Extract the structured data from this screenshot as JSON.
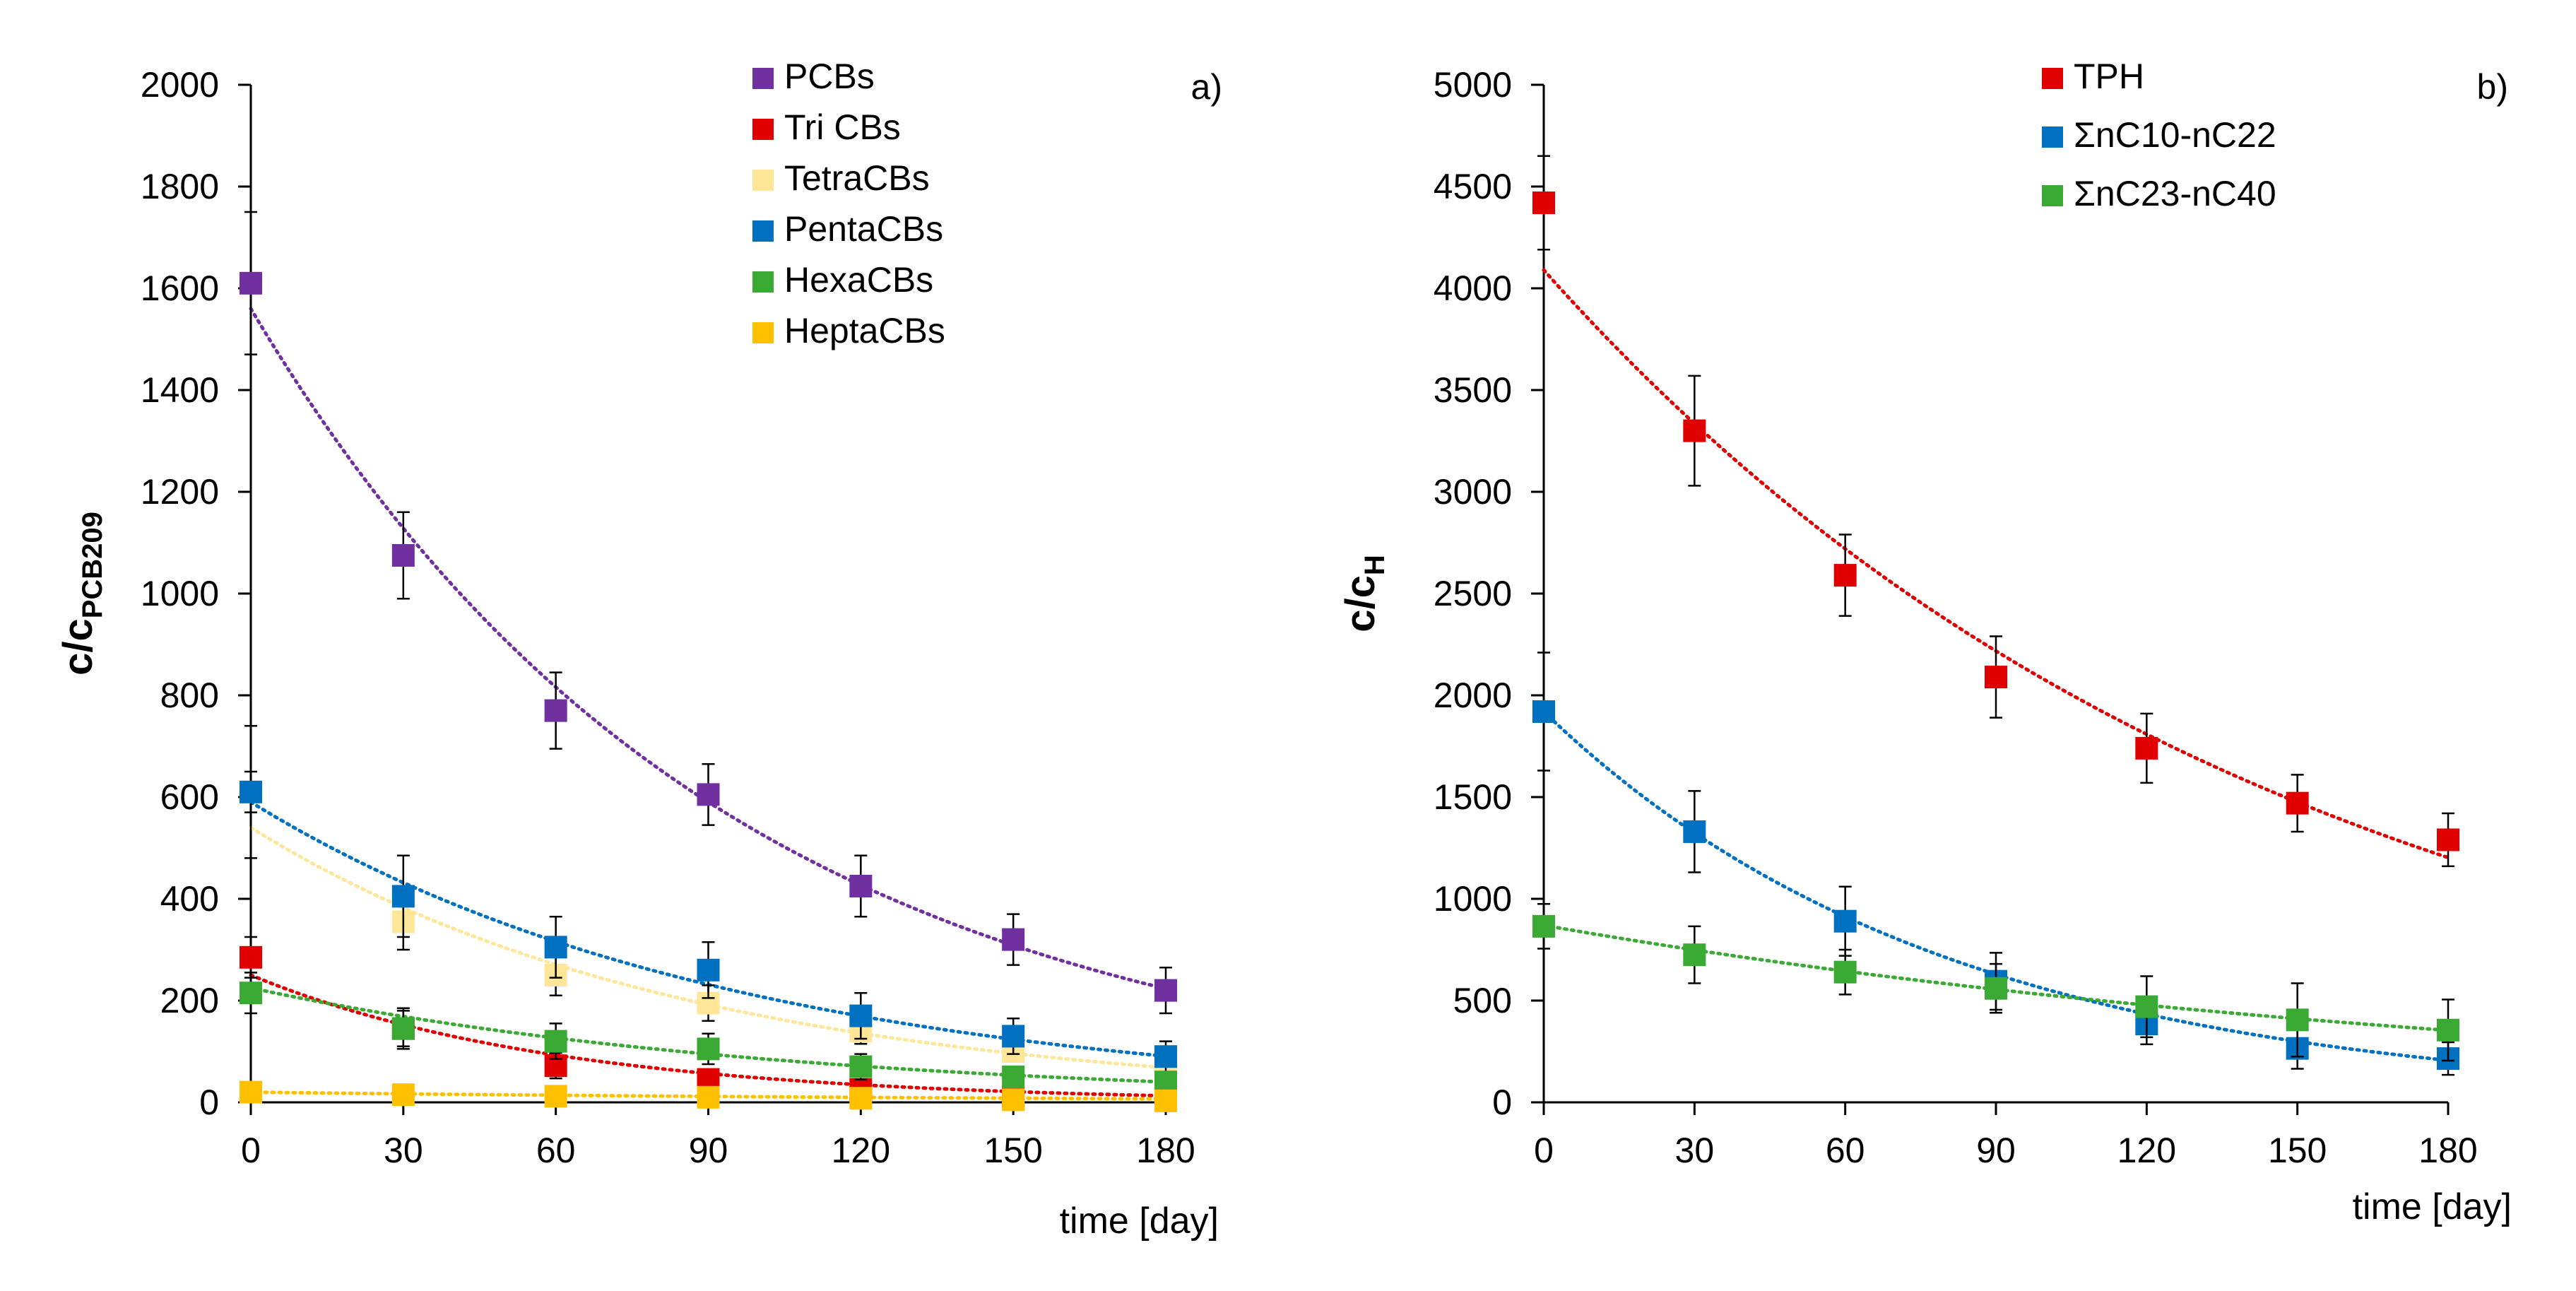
{
  "chart_data": [
    {
      "type": "scatter",
      "panel_label": "a)",
      "xlabel": "time [day]",
      "ylabel_main": "c/c",
      "ylabel_sub": "PCB209",
      "x": [
        0,
        30,
        60,
        90,
        120,
        150,
        180
      ],
      "xlim": [
        0,
        180
      ],
      "ylim": [
        0,
        2000
      ],
      "yticks": [
        "0",
        "200",
        "400",
        "600",
        "800",
        "1000",
        "1200",
        "1400",
        "1600",
        "1800",
        "2000"
      ],
      "xticks": [
        "0",
        "30",
        "60",
        "90",
        "120",
        "150",
        "180"
      ],
      "legend_position": "top-right",
      "series": [
        {
          "name": "PCBs",
          "color": "#7030A0",
          "values": [
            1610,
            1075,
            770,
            605,
            425,
            320,
            220
          ],
          "errors": [
            140,
            85,
            75,
            60,
            60,
            50,
            45
          ],
          "fit": {
            "a": 1560,
            "k": 0.0108
          }
        },
        {
          "name": "Tri CBs",
          "color": "#E00000",
          "values": [
            285,
            145,
            72,
            45,
            25,
            12,
            10
          ],
          "errors": [
            40,
            35,
            25,
            20,
            12,
            8,
            6
          ],
          "fit": {
            "a": 250,
            "k": 0.0165
          }
        },
        {
          "name": "TetraCBs",
          "color": "#FFE699",
          "values": [
            610,
            355,
            250,
            195,
            140,
            100,
            70
          ],
          "errors": [
            40,
            55,
            40,
            35,
            25,
            20,
            15
          ],
          "fit": {
            "a": 540,
            "k": 0.0115
          }
        },
        {
          "name": "PentaCBs",
          "color": "#0070C0",
          "values": [
            610,
            405,
            305,
            260,
            170,
            130,
            90
          ],
          "errors": [
            130,
            80,
            60,
            55,
            45,
            35,
            30
          ],
          "fit": {
            "a": 590,
            "k": 0.0104
          }
        },
        {
          "name": "HexaCBs",
          "color": "#3AAA35",
          "values": [
            215,
            145,
            120,
            105,
            70,
            50,
            40
          ],
          "errors": [
            40,
            40,
            35,
            30,
            25,
            20,
            15
          ],
          "fit": {
            "a": 225,
            "k": 0.0096
          }
        },
        {
          "name": "HeptaCBs",
          "color": "#FFC000",
          "values": [
            20,
            15,
            12,
            10,
            8,
            5,
            3
          ],
          "errors": [
            5,
            5,
            4,
            4,
            3,
            3,
            2
          ],
          "fit": {
            "a": 20,
            "k": 0.006
          }
        }
      ]
    },
    {
      "type": "scatter",
      "panel_label": "b)",
      "xlabel": "time [day]",
      "ylabel_main": "c/c",
      "ylabel_sub": "H",
      "x": [
        0,
        30,
        60,
        90,
        120,
        150,
        180
      ],
      "xlim": [
        0,
        180
      ],
      "ylim": [
        0,
        5000
      ],
      "yticks": [
        "0",
        "500",
        "1000",
        "1500",
        "2000",
        "2500",
        "3000",
        "3500",
        "4000",
        "4500",
        "5000"
      ],
      "xticks": [
        "0",
        "30",
        "60",
        "90",
        "120",
        "150",
        "180"
      ],
      "legend_position": "top-right",
      "series": [
        {
          "name": "TPH",
          "color": "#E00000",
          "values": [
            4420,
            3300,
            2590,
            2090,
            1740,
            1470,
            1290
          ],
          "errors": [
            230,
            270,
            200,
            200,
            170,
            140,
            130
          ],
          "fit": {
            "a": 4090,
            "k": 0.0068
          }
        },
        {
          "name": "ΣnC10-nC22",
          "color": "#0070C0",
          "values": [
            1920,
            1330,
            890,
            595,
            385,
            265,
            215
          ],
          "errors": [
            290,
            200,
            170,
            140,
            100,
            100,
            80
          ],
          "fit": {
            "a": 1920,
            "k": 0.0124
          }
        },
        {
          "name": "ΣnC23-nC40",
          "color": "#3AAA35",
          "values": [
            865,
            725,
            640,
            560,
            470,
            405,
            355
          ],
          "errors": [
            110,
            140,
            110,
            120,
            150,
            180,
            150
          ],
          "fit": {
            "a": 870,
            "k": 0.005
          }
        }
      ]
    }
  ]
}
